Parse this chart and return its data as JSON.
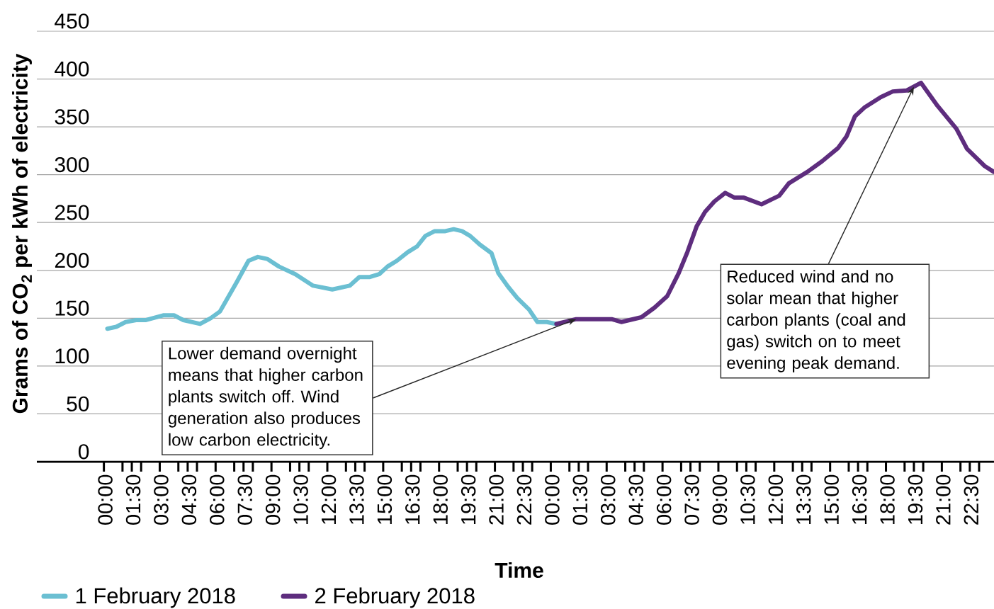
{
  "chart_data": {
    "type": "line",
    "xlabel": "Time",
    "ylabel": "Grams of CO$_{2}$ per kWh of electricity",
    "xlim": [
      "2018-01-31T20:24",
      "2018-02-02T23:48"
    ],
    "ylim": [
      0,
      450
    ],
    "yticks": [
      0,
      50,
      100,
      150,
      200,
      250,
      300,
      350,
      400,
      450
    ],
    "xticks": [
      {
        "value": "2018-02-01T00:00",
        "label": "00:00"
      },
      {
        "value": "2018-02-01T01:00",
        "label": null
      },
      {
        "value": "2018-02-01T01:30",
        "label": "01:30"
      },
      {
        "value": "2018-02-01T02:00",
        "label": null
      },
      {
        "value": "2018-02-01T03:00",
        "label": "03:00"
      },
      {
        "value": "2018-02-01T04:00",
        "label": null
      },
      {
        "value": "2018-02-01T04:30",
        "label": "04:30"
      },
      {
        "value": "2018-02-01T05:00",
        "label": null
      },
      {
        "value": "2018-02-01T06:00",
        "label": "06:00"
      },
      {
        "value": "2018-02-01T07:00",
        "label": null
      },
      {
        "value": "2018-02-01T07:30",
        "label": "07:30"
      },
      {
        "value": "2018-02-01T08:00",
        "label": null
      },
      {
        "value": "2018-02-01T09:00",
        "label": "09:00"
      },
      {
        "value": "2018-02-01T10:00",
        "label": null
      },
      {
        "value": "2018-02-01T10:30",
        "label": "10:30"
      },
      {
        "value": "2018-02-01T11:00",
        "label": null
      },
      {
        "value": "2018-02-01T12:00",
        "label": "12:00"
      },
      {
        "value": "2018-02-01T13:00",
        "label": null
      },
      {
        "value": "2018-02-01T13:30",
        "label": "13:30"
      },
      {
        "value": "2018-02-01T14:00",
        "label": null
      },
      {
        "value": "2018-02-01T15:00",
        "label": "15:00"
      },
      {
        "value": "2018-02-01T16:00",
        "label": null
      },
      {
        "value": "2018-02-01T16:30",
        "label": "16:30"
      },
      {
        "value": "2018-02-01T17:00",
        "label": null
      },
      {
        "value": "2018-02-01T18:00",
        "label": "18:00"
      },
      {
        "value": "2018-02-01T19:00",
        "label": null
      },
      {
        "value": "2018-02-01T19:30",
        "label": "19:30"
      },
      {
        "value": "2018-02-01T20:00",
        "label": null
      },
      {
        "value": "2018-02-01T21:00",
        "label": "21:00"
      },
      {
        "value": "2018-02-01T22:00",
        "label": null
      },
      {
        "value": "2018-02-01T22:30",
        "label": "22:30"
      },
      {
        "value": "2018-02-01T23:00",
        "label": null
      },
      {
        "value": "2018-02-02T00:00",
        "label": "00:00"
      },
      {
        "value": "2018-02-02T01:00",
        "label": null
      },
      {
        "value": "2018-02-02T01:30",
        "label": "01:30"
      },
      {
        "value": "2018-02-02T02:00",
        "label": null
      },
      {
        "value": "2018-02-02T03:00",
        "label": "03:00"
      },
      {
        "value": "2018-02-02T04:00",
        "label": null
      },
      {
        "value": "2018-02-02T04:30",
        "label": "04:30"
      },
      {
        "value": "2018-02-02T05:00",
        "label": null
      },
      {
        "value": "2018-02-02T06:00",
        "label": "06:00"
      },
      {
        "value": "2018-02-02T07:00",
        "label": null
      },
      {
        "value": "2018-02-02T07:30",
        "label": "07:30"
      },
      {
        "value": "2018-02-02T08:00",
        "label": null
      },
      {
        "value": "2018-02-02T09:00",
        "label": "09:00"
      },
      {
        "value": "2018-02-02T10:00",
        "label": null
      },
      {
        "value": "2018-02-02T10:30",
        "label": "10:30"
      },
      {
        "value": "2018-02-02T11:00",
        "label": null
      },
      {
        "value": "2018-02-02T12:00",
        "label": "12:00"
      },
      {
        "value": "2018-02-02T13:00",
        "label": null
      },
      {
        "value": "2018-02-02T13:30",
        "label": "13:30"
      },
      {
        "value": "2018-02-02T14:00",
        "label": null
      },
      {
        "value": "2018-02-02T15:00",
        "label": "15:00"
      },
      {
        "value": "2018-02-02T16:00",
        "label": null
      },
      {
        "value": "2018-02-02T16:30",
        "label": "16:30"
      },
      {
        "value": "2018-02-02T17:00",
        "label": null
      },
      {
        "value": "2018-02-02T18:00",
        "label": "18:00"
      },
      {
        "value": "2018-02-02T19:00",
        "label": null
      },
      {
        "value": "2018-02-02T19:30",
        "label": "19:30"
      },
      {
        "value": "2018-02-02T20:00",
        "label": null
      },
      {
        "value": "2018-02-02T21:00",
        "label": "21:00"
      },
      {
        "value": "2018-02-02T22:00",
        "label": null
      },
      {
        "value": "2018-02-02T22:30",
        "label": "22:30"
      },
      {
        "value": "2018-02-02T23:00",
        "label": null
      }
    ],
    "grid": "y",
    "legend": "bottom left",
    "marker": "none",
    "line_style": "solid",
    "series": [
      {
        "name": "1 February 2018",
        "color": "#6bbfd2",
        "x": [
          "2018-02-01T00:11",
          "2018-02-01T00:40",
          "2018-02-01T01:10",
          "2018-02-01T01:44",
          "2018-02-01T02:14",
          "2018-02-01T03:11",
          "2018-02-01T03:46",
          "2018-02-01T04:16",
          "2018-02-01T05:10",
          "2018-02-01T05:44",
          "2018-02-01T06:14",
          "2018-02-01T07:07",
          "2018-02-01T07:46",
          "2018-02-01T08:16",
          "2018-02-01T08:46",
          "2018-02-01T09:24",
          "2018-02-01T10:17",
          "2018-02-01T11:14",
          "2018-02-01T12:16",
          "2018-02-01T13:12",
          "2018-02-01T13:43",
          "2018-02-01T14:17",
          "2018-02-01T14:47",
          "2018-02-01T15:14",
          "2018-02-01T15:44",
          "2018-02-01T16:19",
          "2018-02-01T16:49",
          "2018-02-01T17:16",
          "2018-02-01T17:46",
          "2018-02-01T18:20",
          "2018-02-01T18:47",
          "2018-02-01T19:14",
          "2018-02-01T19:40",
          "2018-02-01T20:11",
          "2018-02-01T20:49",
          "2018-02-01T21:11",
          "2018-02-01T21:42",
          "2018-02-01T22:12",
          "2018-02-01T22:50",
          "2018-02-01T23:17",
          "2018-02-01T23:47",
          "2018-02-02T00:18"
        ],
        "values": [
          139,
          141,
          146,
          148,
          148,
          153,
          153,
          148,
          144,
          150,
          157,
          187,
          210,
          214,
          212,
          204,
          196,
          184,
          180,
          184,
          193,
          193,
          196,
          204,
          210,
          219,
          225,
          236,
          241,
          241,
          243,
          241,
          236,
          227,
          218,
          197,
          183,
          171,
          159,
          146,
          146,
          144
        ]
      },
      {
        "name": "2 February 2018",
        "color": "#5e2d7e",
        "x": [
          "2018-02-02T00:18",
          "2018-02-02T01:22",
          "2018-02-02T03:16",
          "2018-02-02T03:47",
          "2018-02-02T04:52",
          "2018-02-02T05:34",
          "2018-02-02T06:15",
          "2018-02-02T06:52",
          "2018-02-02T07:20",
          "2018-02-02T07:50",
          "2018-02-02T08:17",
          "2018-02-02T08:47",
          "2018-02-02T09:22",
          "2018-02-02T09:52",
          "2018-02-02T10:22",
          "2018-02-02T11:19",
          "2018-02-02T12:16",
          "2018-02-02T12:47",
          "2018-02-02T13:47",
          "2018-02-02T14:34",
          "2018-02-02T15:26",
          "2018-02-02T15:53",
          "2018-02-02T16:20",
          "2018-02-02T16:50",
          "2018-02-02T17:43",
          "2018-02-02T18:22",
          "2018-02-02T19:07",
          "2018-02-02T19:53",
          "2018-02-02T20:46",
          "2018-02-02T21:47",
          "2018-02-02T22:21",
          "2018-02-02T23:18",
          "2018-02-02T23:47"
        ],
        "values": [
          144,
          149,
          149,
          146,
          151,
          161,
          173,
          197,
          219,
          246,
          261,
          272,
          281,
          276,
          276,
          269,
          278,
          291,
          303,
          314,
          328,
          340,
          361,
          370,
          381,
          387,
          388,
          396,
          372,
          348,
          327,
          309,
          303
        ]
      }
    ],
    "annotations": [
      {
        "text": "Lower demand overnight means that higher carbon plants switch off. Wind generation also produces low carbon electricity.",
        "x": "2018-02-02T01:22",
        "y": 149
      },
      {
        "text": "Reduced wind and no solar mean that higher carbon plants (coal and gas) switch on to meet evening peak demand.",
        "x": "2018-02-02T19:30",
        "y": 392
      }
    ]
  }
}
